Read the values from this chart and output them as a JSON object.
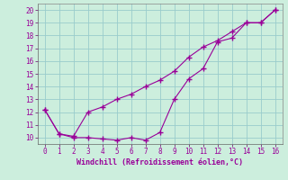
{
  "xlabel": "Windchill (Refroidissement éolien,°C)",
  "x": [
    0,
    1,
    2,
    3,
    4,
    5,
    6,
    7,
    8,
    9,
    10,
    11,
    12,
    13,
    14,
    15,
    16
  ],
  "line1_y": [
    12.2,
    10.3,
    10.0,
    10.0,
    9.9,
    9.8,
    10.0,
    9.8,
    10.4,
    13.0,
    14.6,
    15.4,
    17.5,
    17.8,
    19.0,
    19.0,
    20.0
  ],
  "line2_y": [
    12.2,
    10.3,
    10.1,
    12.0,
    12.4,
    13.0,
    13.4,
    14.0,
    14.5,
    15.2,
    16.3,
    17.1,
    17.6,
    18.3,
    19.0,
    19.0,
    20.0
  ],
  "line_color": "#990099",
  "bg_color": "#cceedd",
  "grid_color": "#99cccc",
  "ylim": [
    9.5,
    20.5
  ],
  "xlim": [
    -0.5,
    16.5
  ],
  "yticks": [
    10,
    11,
    12,
    13,
    14,
    15,
    16,
    17,
    18,
    19,
    20
  ],
  "xticks": [
    0,
    1,
    2,
    3,
    4,
    5,
    6,
    7,
    8,
    9,
    10,
    11,
    12,
    13,
    14,
    15,
    16
  ],
  "marker": "+",
  "markersize": 4,
  "linewidth": 0.8,
  "tick_fontsize": 5.5,
  "xlabel_fontsize": 6.0
}
